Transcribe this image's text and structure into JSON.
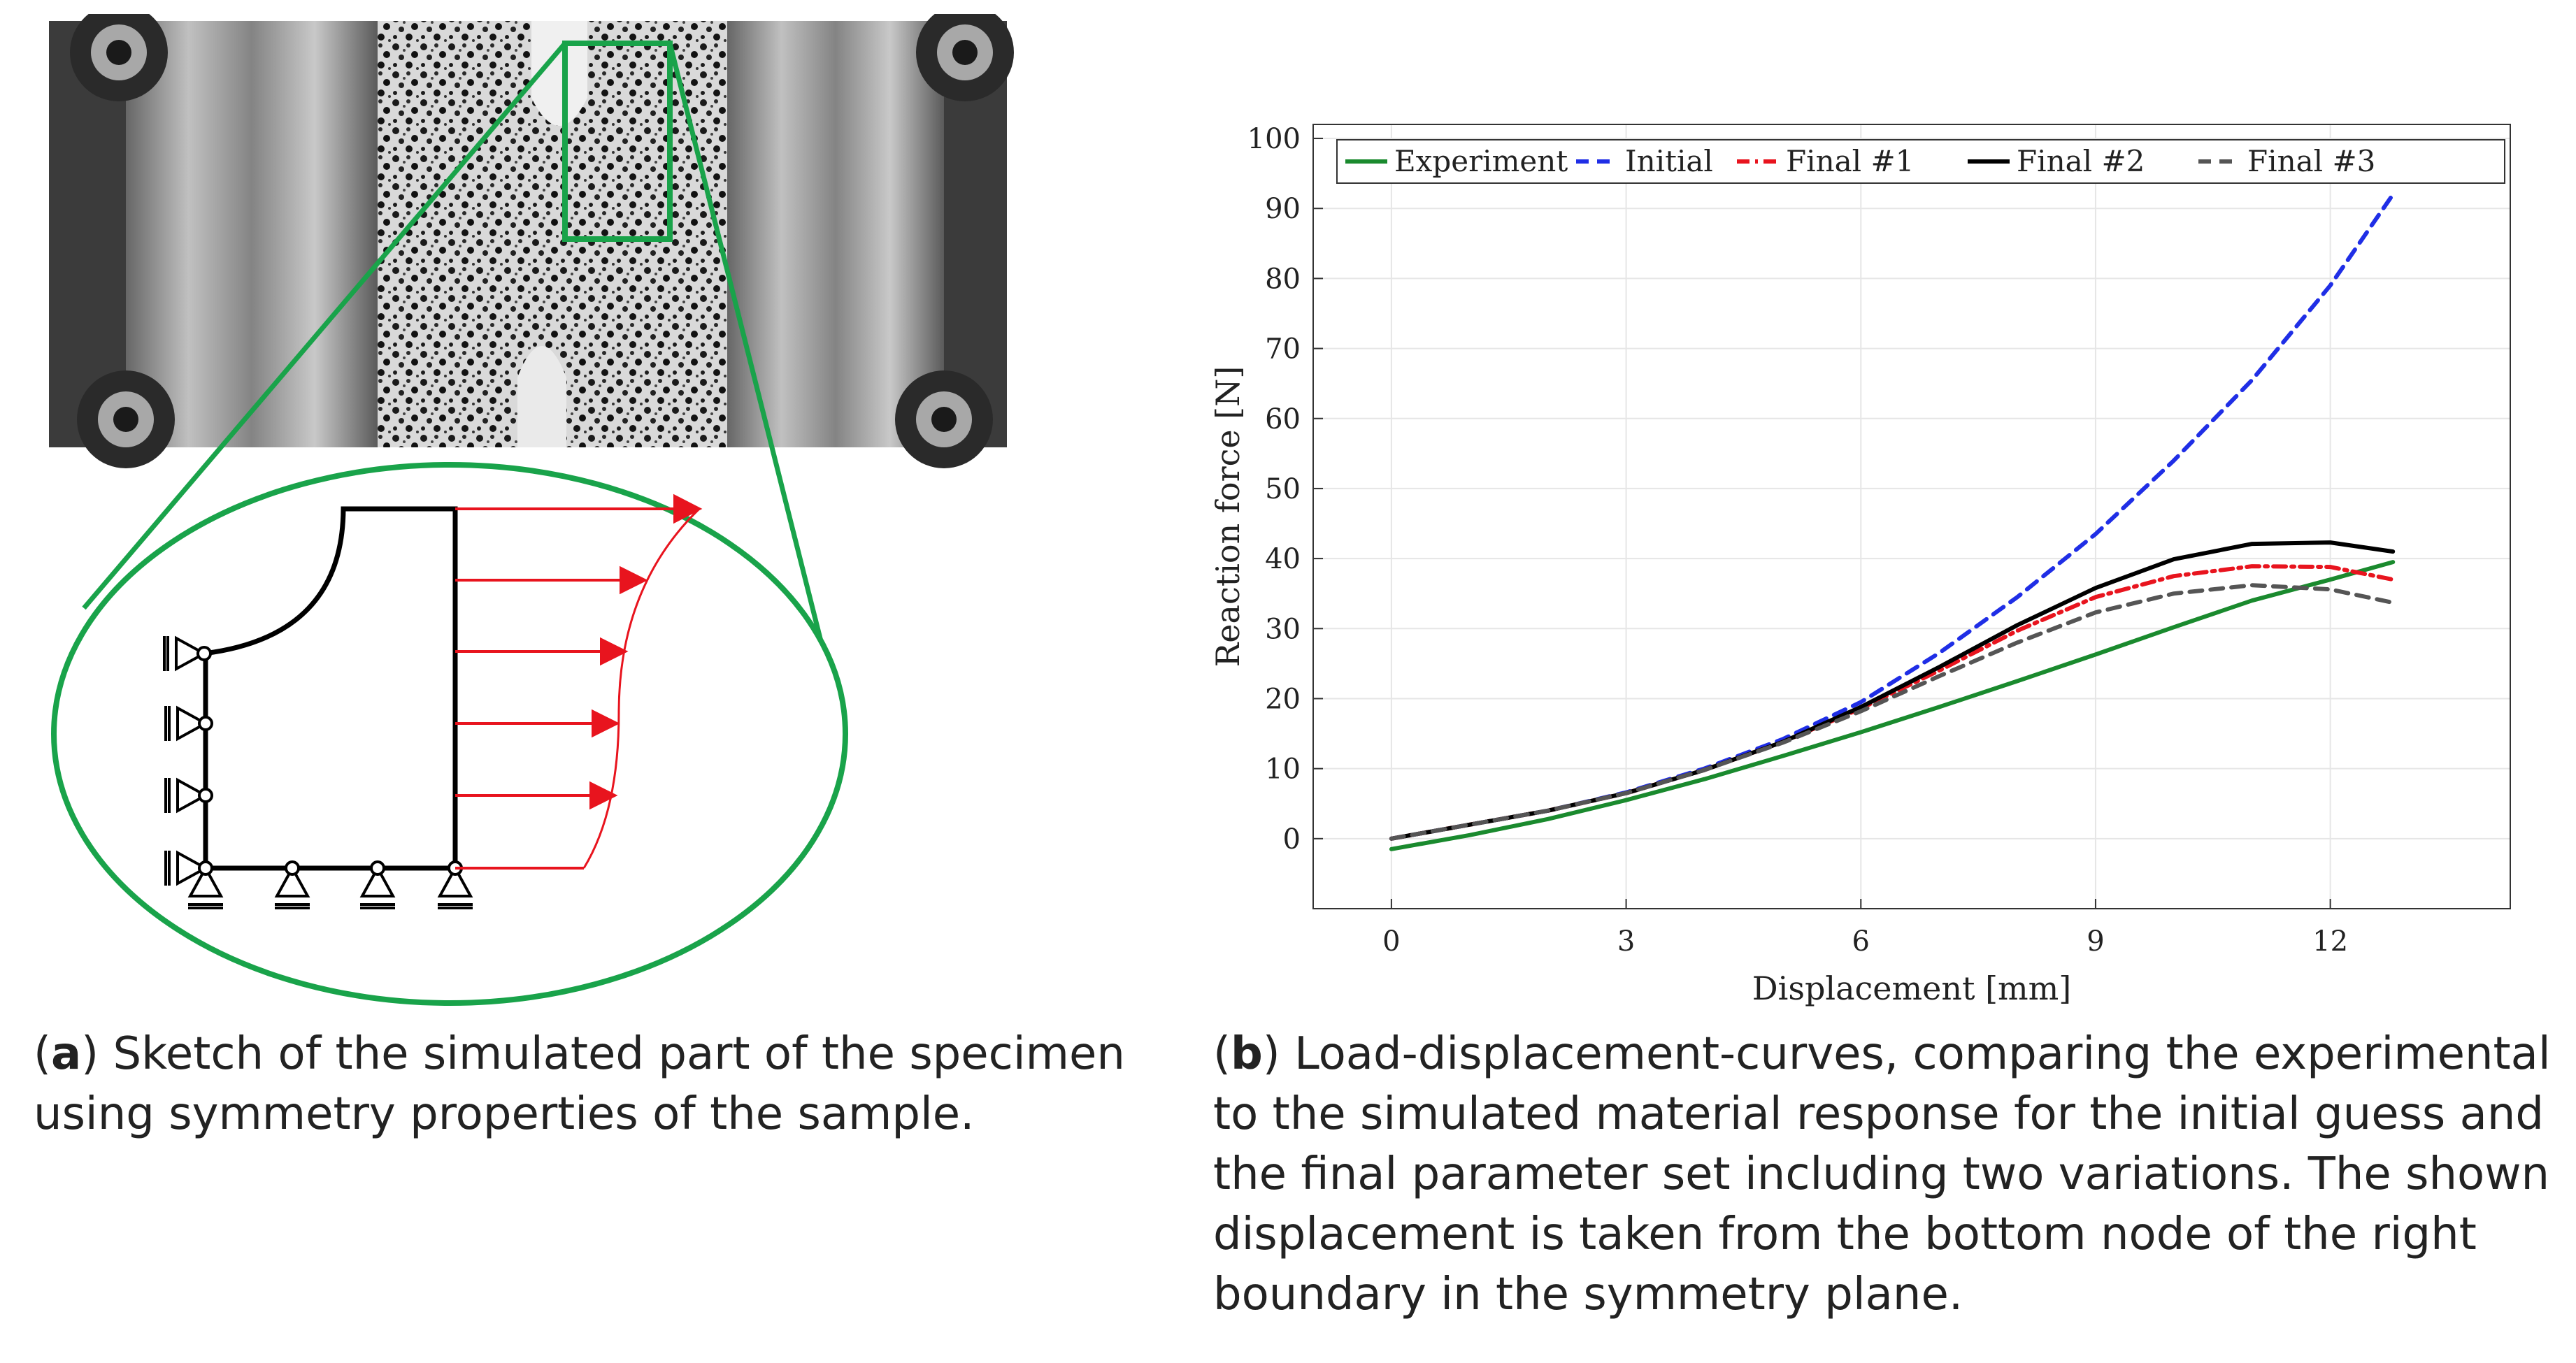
{
  "panel_a": {
    "caption_label": "a",
    "caption_text": "Sketch of the simulated part of the specimen using symmetry properties of the sample."
  },
  "panel_b": {
    "caption_label": "b",
    "caption_text": "Load-displacement-curves, comparing the experimental to the simulated material response for the initial guess and the final parameter set including two variations. The shown displacement is taken from the bottom node of the right boundary in the symmetry plane."
  },
  "colors": {
    "green": "#1a8a2e",
    "blue": "#1f2ee6",
    "red": "#e8141e",
    "black": "#000000",
    "gray": "#555555",
    "highlight": "#19a34a"
  },
  "chart_data": {
    "type": "line",
    "xlabel": "Displacement [mm]",
    "ylabel": "Reaction force [N]",
    "xlim": [
      -1,
      14.3
    ],
    "ylim": [
      -10,
      102
    ],
    "xticks": [
      0,
      3,
      6,
      9,
      12
    ],
    "yticks": [
      0,
      10,
      20,
      30,
      40,
      50,
      60,
      70,
      80,
      90,
      100
    ],
    "grid": true,
    "legend_position": "top, inside axes",
    "series": [
      {
        "name": "Experiment",
        "color": "#1a8a2e",
        "dash": "solid",
        "x": [
          0,
          1,
          2,
          3,
          4,
          5,
          6,
          7,
          8,
          9,
          10,
          11,
          12,
          12.8
        ],
        "y": [
          -1.5,
          0.5,
          2.8,
          5.5,
          8.5,
          11.8,
          15.2,
          18.8,
          22.5,
          26.3,
          30.2,
          34.0,
          37.0,
          39.5
        ]
      },
      {
        "name": "Initial",
        "color": "#1f2ee6",
        "dash": "dashed",
        "x": [
          0,
          1,
          2,
          3,
          4,
          5,
          6,
          7,
          8,
          9,
          10,
          11,
          12,
          12.8
        ],
        "y": [
          0,
          2,
          4,
          6.6,
          10,
          14.2,
          19.5,
          26.5,
          34.5,
          43.5,
          54,
          65.5,
          79,
          92
        ]
      },
      {
        "name": "Final #1",
        "color": "#e8141e",
        "dash": "dashdot",
        "x": [
          0,
          1,
          2,
          3,
          4,
          5,
          6,
          7,
          8,
          9,
          10,
          11,
          12,
          12.8
        ],
        "y": [
          0,
          2,
          4,
          6.5,
          9.8,
          13.8,
          18.6,
          24,
          29.7,
          34.5,
          37.5,
          38.9,
          38.8,
          37.0
        ]
      },
      {
        "name": "Final #2",
        "color": "#000000",
        "dash": "solid",
        "x": [
          0,
          1,
          2,
          3,
          4,
          5,
          6,
          7,
          8,
          9,
          10,
          11,
          12,
          12.8
        ],
        "y": [
          0,
          2,
          4,
          6.5,
          9.8,
          13.8,
          18.8,
          24.5,
          30.5,
          35.8,
          39.9,
          42.1,
          42.3,
          41.0
        ]
      },
      {
        "name": "Final #3",
        "color": "#555555",
        "dash": "dashed",
        "x": [
          0,
          1,
          2,
          3,
          4,
          5,
          6,
          7,
          8,
          9,
          10,
          11,
          12,
          12.8
        ],
        "y": [
          0,
          2,
          4,
          6.5,
          9.8,
          13.7,
          18.2,
          23.2,
          28,
          32.3,
          35.0,
          36.2,
          35.6,
          33.7
        ]
      }
    ]
  }
}
